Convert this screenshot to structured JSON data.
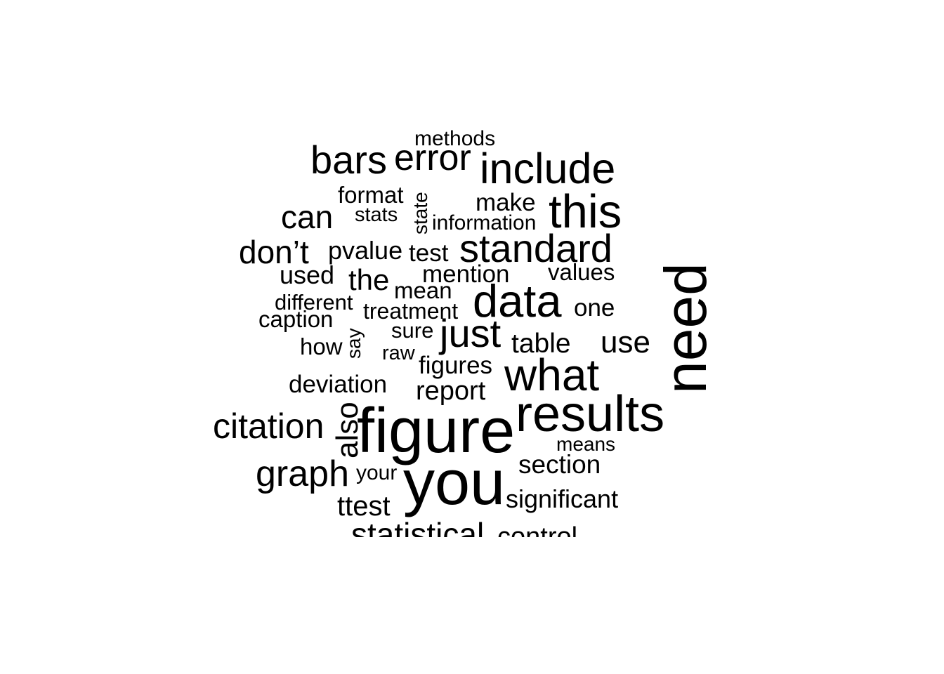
{
  "word_cloud": {
    "text_color": "#000000",
    "background_color": "#ffffff",
    "words": [
      {
        "text": "methods",
        "orientation": "horizontal"
      },
      {
        "text": "bars",
        "orientation": "horizontal"
      },
      {
        "text": "error",
        "orientation": "horizontal"
      },
      {
        "text": "include",
        "orientation": "horizontal"
      },
      {
        "text": "format",
        "orientation": "horizontal"
      },
      {
        "text": "state",
        "orientation": "vertical"
      },
      {
        "text": "make",
        "orientation": "horizontal"
      },
      {
        "text": "this",
        "orientation": "horizontal"
      },
      {
        "text": "can",
        "orientation": "horizontal"
      },
      {
        "text": "stats",
        "orientation": "horizontal"
      },
      {
        "text": "information",
        "orientation": "horizontal"
      },
      {
        "text": "don’t",
        "orientation": "horizontal"
      },
      {
        "text": "pvalue",
        "orientation": "horizontal"
      },
      {
        "text": "test",
        "orientation": "horizontal"
      },
      {
        "text": "standard",
        "orientation": "horizontal"
      },
      {
        "text": "need",
        "orientation": "vertical"
      },
      {
        "text": "used",
        "orientation": "horizontal"
      },
      {
        "text": "the",
        "orientation": "horizontal"
      },
      {
        "text": "mention",
        "orientation": "horizontal"
      },
      {
        "text": "values",
        "orientation": "horizontal"
      },
      {
        "text": "mean",
        "orientation": "horizontal"
      },
      {
        "text": "different",
        "orientation": "horizontal"
      },
      {
        "text": "data",
        "orientation": "horizontal"
      },
      {
        "text": "treatment",
        "orientation": "horizontal"
      },
      {
        "text": "one",
        "orientation": "horizontal"
      },
      {
        "text": "caption",
        "orientation": "horizontal"
      },
      {
        "text": "say",
        "orientation": "vertical"
      },
      {
        "text": "sure",
        "orientation": "horizontal"
      },
      {
        "text": "just",
        "orientation": "horizontal"
      },
      {
        "text": "how",
        "orientation": "horizontal"
      },
      {
        "text": "table",
        "orientation": "horizontal"
      },
      {
        "text": "use",
        "orientation": "horizontal"
      },
      {
        "text": "raw",
        "orientation": "horizontal"
      },
      {
        "text": "figures",
        "orientation": "horizontal"
      },
      {
        "text": "what",
        "orientation": "horizontal"
      },
      {
        "text": "deviation",
        "orientation": "horizontal"
      },
      {
        "text": "report",
        "orientation": "horizontal"
      },
      {
        "text": "also",
        "orientation": "vertical"
      },
      {
        "text": "results",
        "orientation": "horizontal"
      },
      {
        "text": "citation",
        "orientation": "horizontal"
      },
      {
        "text": "figure",
        "orientation": "horizontal"
      },
      {
        "text": "means",
        "orientation": "horizontal"
      },
      {
        "text": "section",
        "orientation": "horizontal"
      },
      {
        "text": "graph",
        "orientation": "horizontal"
      },
      {
        "text": "your",
        "orientation": "horizontal"
      },
      {
        "text": "you",
        "orientation": "horizontal"
      },
      {
        "text": "significant",
        "orientation": "horizontal"
      },
      {
        "text": "ttest",
        "orientation": "horizontal"
      },
      {
        "text": "statistical",
        "orientation": "horizontal"
      },
      {
        "text": "control",
        "orientation": "horizontal"
      }
    ]
  }
}
